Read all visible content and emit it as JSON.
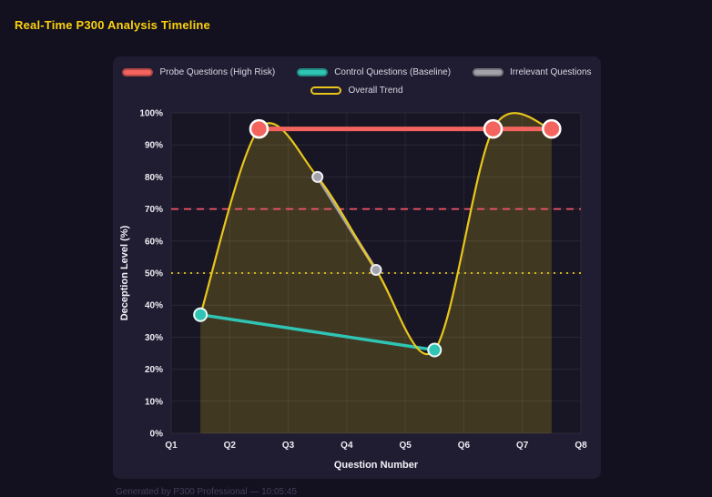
{
  "page": {
    "title": "Real-Time P300 Analysis Timeline",
    "footer": "Generated by P300 Professional — 10:05:45"
  },
  "theme": {
    "page_bg": "#131020",
    "panel_bg": "#201c31",
    "title_color": "#fcd20d",
    "text_color": "#d9d9e6",
    "footer_color": "#454159"
  },
  "chart_data": {
    "type": "line",
    "title": "Real-Time P300 Analysis Timeline",
    "xlabel": "Question Number",
    "ylabel": "Deception Level (%)",
    "x_range": [
      1,
      8
    ],
    "y_range": [
      0,
      100
    ],
    "x_tick_values": [
      1,
      2,
      3,
      4,
      5,
      6,
      7,
      8
    ],
    "x_tick_labels": [
      "Q1",
      "Q2",
      "Q3",
      "Q4",
      "Q5",
      "Q6",
      "Q7",
      "Q8"
    ],
    "y_tick_step": 10,
    "y_tick_suffix": "%",
    "grid": true,
    "legend_position": "top",
    "legend": [
      {
        "label": "Probe Questions (High Risk)",
        "color": "#f4645f",
        "outline": false
      },
      {
        "label": "Control Questions (Baseline)",
        "color": "#2fc4b4",
        "outline": false
      },
      {
        "label": "Irrelevant Questions",
        "color": "#a2a2aa",
        "outline": false
      },
      {
        "label": "Overall Trend",
        "color": "#e8c61c",
        "outline": true
      }
    ],
    "series": [
      {
        "name": "Probe Questions (High Risk)",
        "color": "#f4645f",
        "line_width": 5,
        "marker_radius": 9.5,
        "marker_stroke": "#ffffff",
        "marker_stroke_width": 2.5,
        "smooth": false,
        "area_fill": false,
        "z": 4,
        "points": [
          [
            2.5,
            95
          ],
          [
            6.5,
            95
          ],
          [
            7.5,
            95
          ]
        ]
      },
      {
        "name": "Control Questions (Baseline)",
        "color": "#2fc4b4",
        "line_width": 3.5,
        "marker_radius": 7,
        "marker_stroke": "#eafaf8",
        "marker_stroke_width": 2,
        "smooth": false,
        "area_fill": false,
        "z": 1,
        "points": [
          [
            1.5,
            37
          ],
          [
            5.5,
            26
          ]
        ]
      },
      {
        "name": "Irrelevant Questions",
        "color": "#a2a2aa",
        "line_width": 3.5,
        "marker_radius": 5.5,
        "marker_stroke": "#ededf2",
        "marker_stroke_width": 2,
        "smooth": false,
        "area_fill": false,
        "z": 2,
        "points": [
          [
            3.5,
            80
          ],
          [
            4.5,
            51
          ]
        ]
      },
      {
        "name": "Overall Trend",
        "color": "#e8c61c",
        "line_width": 2.2,
        "marker_radius": 0,
        "marker_stroke": "#ffffff",
        "marker_stroke_width": 0,
        "smooth": true,
        "area_fill": true,
        "fill_opacity": 0.2,
        "z": 3,
        "points": [
          [
            1.5,
            37
          ],
          [
            2.5,
            95
          ],
          [
            3.5,
            80
          ],
          [
            4.5,
            51
          ],
          [
            5.5,
            26
          ],
          [
            6.5,
            95
          ],
          [
            7.5,
            95
          ]
        ]
      }
    ],
    "thresholds": [
      {
        "value": 70,
        "color": "#f4566b",
        "dash": "8 6",
        "width": 1.8
      },
      {
        "value": 50,
        "color": "#e8c61c",
        "dash": "2 5",
        "width": 1.8
      }
    ]
  }
}
